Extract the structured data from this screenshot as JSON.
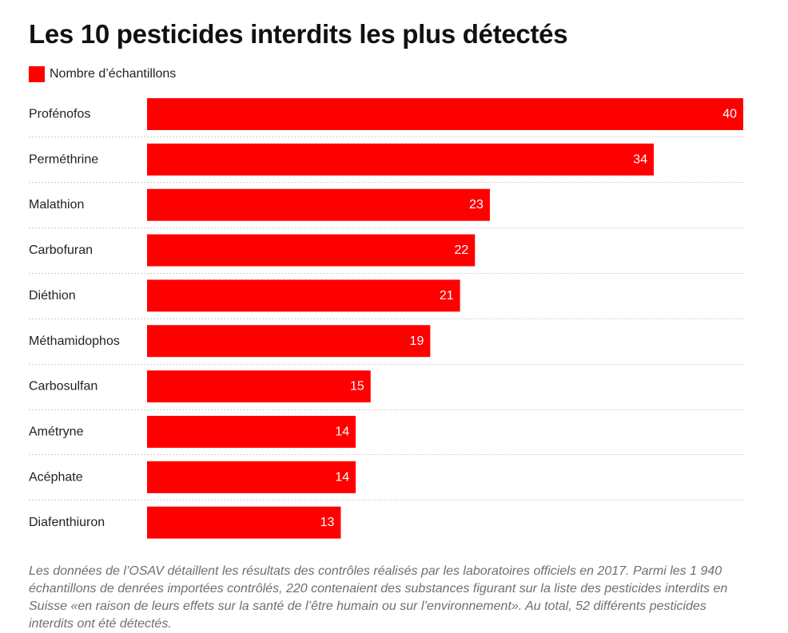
{
  "title": "Les 10 pesticides interdits les plus détectés",
  "legend": {
    "label": "Nombre d’échantillons",
    "color": "#ff0000"
  },
  "note": "Les données de l’OSAV détaillent les résultats des contrôles réalisés par les laboratoires officiels en 2017. Parmi les 1 940 échantillons de denrées importées contrôlés, 220 contenaient des substances figurant sur la liste des pesticides interdits en Suisse «en raison de leurs effets sur la santé de l’être humain ou sur l’environnement». Au total, 52 différents pesticides interdits ont été détectés.",
  "colors": {
    "bar": "#ff0000",
    "bar_label": "#ffffff",
    "gridline": "#d0d0d0"
  },
  "chart_data": {
    "type": "bar",
    "orientation": "horizontal",
    "title": "Les 10 pesticides interdits les plus détectés",
    "categories": [
      "Profénofos",
      "Perméthrine",
      "Malathion",
      "Carbofuran",
      "Diéthion",
      "Méthamidophos",
      "Carbosulfan",
      "Amétryne",
      "Acéphate",
      "Diafenthiuron"
    ],
    "series": [
      {
        "name": "Nombre d’échantillons",
        "values": [
          40,
          34,
          23,
          22,
          21,
          19,
          15,
          14,
          14,
          13
        ]
      }
    ],
    "xlim": [
      0,
      40
    ],
    "grid": false,
    "data_labels": "inside-end",
    "legend_position": "top-left"
  }
}
